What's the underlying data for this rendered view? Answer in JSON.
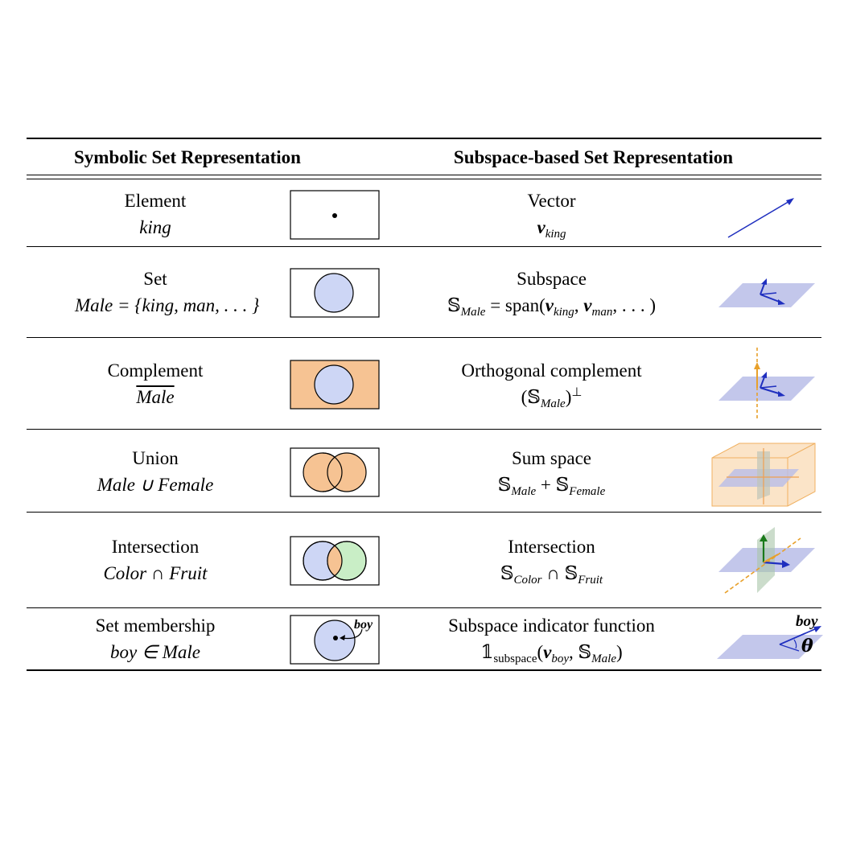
{
  "header": {
    "left": "Symbolic Set Representation",
    "right": "Subspace-based Set Representation"
  },
  "rows": [
    {
      "left_title": "Element",
      "left_expr": "king",
      "right_title": "Vector",
      "right_expr_v": "v",
      "right_expr_sub": "king",
      "venn": "point"
    },
    {
      "left_title": "Set",
      "left_expr": "Male = {king, man, . . . }",
      "right_title": "Subspace",
      "right_S": "𝕊",
      "right_S_sub": "Male",
      "right_eq": " = span(",
      "right_v1": "v",
      "right_v1_sub": "king",
      "right_comma": ", ",
      "right_v2": "v",
      "right_v2_sub": "man",
      "right_tail": ", . . . )",
      "venn": "circle"
    },
    {
      "left_title": "Complement",
      "left_expr": "Male",
      "right_title": "Orthogonal complement",
      "right_open": "(",
      "right_S": "𝕊",
      "right_S_sub": "Male",
      "right_close": ")",
      "right_sup": "⊥",
      "venn": "complement"
    },
    {
      "left_title": "Union",
      "left_expr": "Male ∪ Female",
      "right_title": "Sum space",
      "right_S1": "𝕊",
      "right_S1_sub": "Male",
      "right_op": " + ",
      "right_S2": "𝕊",
      "right_S2_sub": "Female",
      "venn": "union"
    },
    {
      "left_title": "Intersection",
      "left_expr": "Color ∩ Fruit",
      "right_title": "Intersection",
      "right_S1": "𝕊",
      "right_S1_sub": "Color",
      "right_op": " ∩ ",
      "right_S2": "𝕊",
      "right_S2_sub": "Fruit",
      "venn": "intersection"
    },
    {
      "left_title": "Set membership",
      "left_expr": "boy ∈ Male",
      "right_title": "Subspace indicator function",
      "right_one": "𝟙",
      "right_one_sub": "subspace",
      "right_open": "(",
      "right_v": "v",
      "right_v_sub": "boy",
      "right_comma": ", ",
      "right_S": "𝕊",
      "right_S_sub": "Male",
      "right_close": ")",
      "venn_label": "boy",
      "fig_label_boy": "boy",
      "fig_label_theta": "θ",
      "venn": "membership"
    }
  ],
  "colors": {
    "blue_fill": "#cdd6f5",
    "orange_fill": "#f6c393",
    "green_fill": "#c9eec6",
    "plane": "#b9bde8",
    "arrow_blue": "#1f2fbf",
    "arrow_orange": "#e8a02a",
    "arrow_green": "#1a7a1a"
  }
}
